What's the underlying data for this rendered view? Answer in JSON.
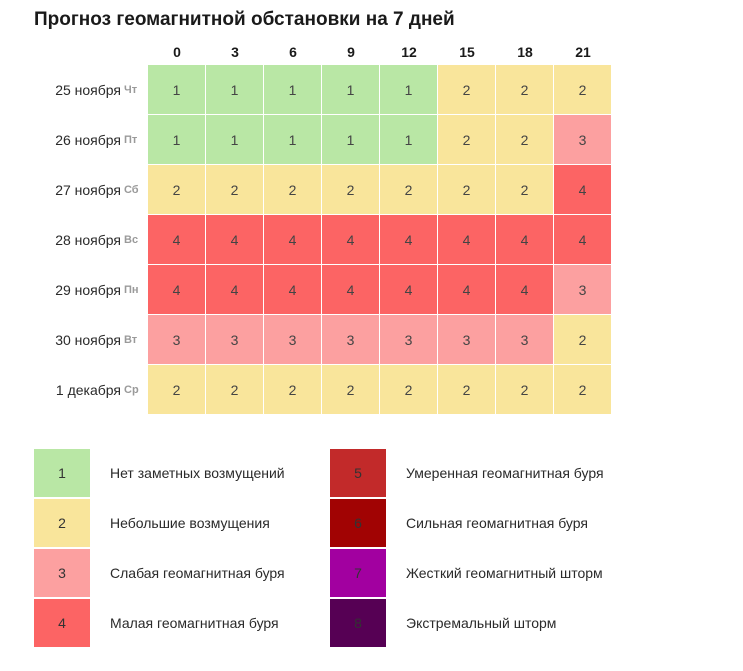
{
  "title": "Прогноз геомагнитной обстановки на 7 дней",
  "hours": [
    "0",
    "3",
    "6",
    "9",
    "12",
    "15",
    "18",
    "21"
  ],
  "colors": {
    "1": "#b9e7a5",
    "2": "#f9e59b",
    "3": "#fca0a0",
    "4": "#fc6464",
    "5": "#c22a2a",
    "6": "#a10303",
    "7": "#a200a0",
    "8": "#560054"
  },
  "days": [
    {
      "date": "25 ноября",
      "dow": "Чт",
      "values": [
        1,
        1,
        1,
        1,
        1,
        2,
        2,
        2
      ]
    },
    {
      "date": "26 ноября",
      "dow": "Пт",
      "values": [
        1,
        1,
        1,
        1,
        1,
        2,
        2,
        3
      ]
    },
    {
      "date": "27 ноября",
      "dow": "Сб",
      "values": [
        2,
        2,
        2,
        2,
        2,
        2,
        2,
        4
      ]
    },
    {
      "date": "28 ноября",
      "dow": "Вс",
      "values": [
        4,
        4,
        4,
        4,
        4,
        4,
        4,
        4
      ]
    },
    {
      "date": "29 ноября",
      "dow": "Пн",
      "values": [
        4,
        4,
        4,
        4,
        4,
        4,
        4,
        3
      ]
    },
    {
      "date": "30 ноября",
      "dow": "Вт",
      "values": [
        3,
        3,
        3,
        3,
        3,
        3,
        3,
        2
      ]
    },
    {
      "date": "1 декабря",
      "dow": "Ср",
      "values": [
        2,
        2,
        2,
        2,
        2,
        2,
        2,
        2
      ]
    }
  ],
  "legend": [
    {
      "level": "1",
      "text": "Нет заметных возмущений"
    },
    {
      "level": "2",
      "text": "Небольшие возмущения"
    },
    {
      "level": "3",
      "text": "Слабая геомагнитная буря"
    },
    {
      "level": "4",
      "text": "Малая геомагнитная буря"
    },
    {
      "level": "5",
      "text": "Умеренная геомагнитная буря"
    },
    {
      "level": "6",
      "text": "Сильная геомагнитная буря"
    },
    {
      "level": "7",
      "text": "Жесткий геомагнитный шторм"
    },
    {
      "level": "8",
      "text": "Экстремальный шторм"
    }
  ]
}
